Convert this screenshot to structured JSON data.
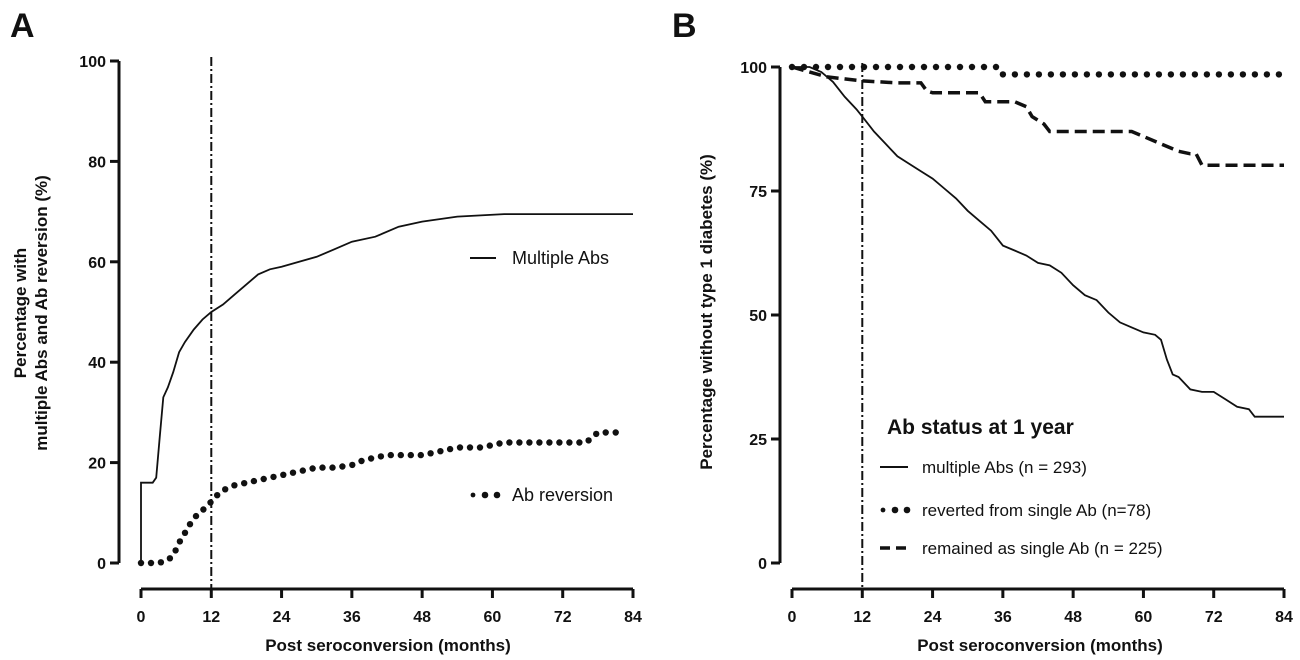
{
  "chart_data": [
    {
      "panel_label": "A",
      "type": "line",
      "xlabel": "Post seroconversion (months)",
      "ylabel_lines": [
        "Percentage with",
        "multiple Abs and Ab reversion (%)"
      ],
      "xlim": [
        0,
        84
      ],
      "ylim": [
        0,
        100
      ],
      "x_ticks": [
        0,
        12,
        24,
        36,
        48,
        60,
        72,
        84
      ],
      "y_ticks": [
        0,
        20,
        40,
        60,
        80,
        100
      ],
      "reference_line_x": 12,
      "series": [
        {
          "name": "Multiple Abs",
          "style": "solid",
          "points": [
            [
              0,
              0
            ],
            [
              0,
              16
            ],
            [
              2,
              16
            ],
            [
              2.6,
              17
            ],
            [
              3.2,
              25
            ],
            [
              3.8,
              33
            ],
            [
              4.6,
              35
            ],
            [
              5.5,
              38
            ],
            [
              6.5,
              42
            ],
            [
              7.5,
              44
            ],
            [
              9,
              46.5
            ],
            [
              10.5,
              48.5
            ],
            [
              12,
              50
            ],
            [
              14,
              51.5
            ],
            [
              16,
              53.5
            ],
            [
              18,
              55.5
            ],
            [
              20,
              57.5
            ],
            [
              22,
              58.5
            ],
            [
              24,
              59
            ],
            [
              27,
              60
            ],
            [
              30,
              61
            ],
            [
              33,
              62.5
            ],
            [
              36,
              64
            ],
            [
              40,
              65
            ],
            [
              44,
              67
            ],
            [
              48,
              68
            ],
            [
              54,
              69
            ],
            [
              62,
              69.5
            ],
            [
              84,
              69.5
            ]
          ]
        },
        {
          "name": "Ab reversion",
          "style": "dotted",
          "points": [
            [
              0,
              0
            ],
            [
              1.5,
              0
            ],
            [
              3,
              0
            ],
            [
              4.5,
              0.5
            ],
            [
              5.5,
              1.5
            ],
            [
              6.5,
              4
            ],
            [
              7.5,
              6
            ],
            [
              8.5,
              8
            ],
            [
              9.5,
              9.5
            ],
            [
              10.5,
              10.5
            ],
            [
              11.5,
              11.5
            ],
            [
              12.5,
              13
            ],
            [
              14,
              14.5
            ],
            [
              16,
              15.5
            ],
            [
              18,
              16
            ],
            [
              20,
              16.5
            ],
            [
              22,
              17
            ],
            [
              24,
              17.5
            ],
            [
              26,
              18
            ],
            [
              28,
              18.5
            ],
            [
              30,
              19
            ],
            [
              33,
              19
            ],
            [
              36,
              19.5
            ],
            [
              38,
              20.5
            ],
            [
              40,
              21
            ],
            [
              42,
              21.5
            ],
            [
              44,
              21.5
            ],
            [
              46,
              21.5
            ],
            [
              48,
              21.5
            ],
            [
              50,
              22
            ],
            [
              52,
              22.5
            ],
            [
              54,
              23
            ],
            [
              56,
              23
            ],
            [
              58,
              23
            ],
            [
              60,
              23.5
            ],
            [
              62,
              24
            ],
            [
              64,
              24
            ],
            [
              66,
              24
            ],
            [
              68,
              24
            ],
            [
              70,
              24
            ],
            [
              72,
              24
            ],
            [
              74,
              24
            ],
            [
              76,
              24
            ],
            [
              78,
              26
            ],
            [
              80,
              26
            ],
            [
              82,
              26
            ]
          ]
        }
      ]
    },
    {
      "panel_label": "B",
      "type": "line",
      "xlabel": "Post seroconversion (months)",
      "ylabel_lines": [
        "Percentage without type 1 diabetes (%)"
      ],
      "xlim": [
        0,
        84
      ],
      "ylim": [
        0,
        100
      ],
      "x_ticks": [
        0,
        12,
        24,
        36,
        48,
        60,
        72,
        84
      ],
      "y_ticks": [
        0,
        25,
        50,
        75,
        100
      ],
      "reference_line_x": 12,
      "legend_title": "Ab status at 1 year",
      "series": [
        {
          "name": "multiple Abs (n = 293)",
          "style": "solid",
          "points": [
            [
              0,
              100
            ],
            [
              3,
              100
            ],
            [
              5,
              99
            ],
            [
              7,
              97
            ],
            [
              9,
              94
            ],
            [
              11,
              91.5
            ],
            [
              12,
              90
            ],
            [
              14,
              87
            ],
            [
              16,
              84.5
            ],
            [
              18,
              82
            ],
            [
              20,
              80.5
            ],
            [
              22,
              79
            ],
            [
              24,
              77.5
            ],
            [
              26,
              75.5
            ],
            [
              28,
              73.5
            ],
            [
              30,
              71
            ],
            [
              32,
              69
            ],
            [
              34,
              67
            ],
            [
              36,
              64
            ],
            [
              38,
              63
            ],
            [
              40,
              62
            ],
            [
              42,
              60.5
            ],
            [
              44,
              60
            ],
            [
              46,
              58.5
            ],
            [
              48,
              56
            ],
            [
              50,
              54
            ],
            [
              52,
              53
            ],
            [
              54,
              50.5
            ],
            [
              56,
              48.5
            ],
            [
              58,
              47.5
            ],
            [
              60,
              46.5
            ],
            [
              62,
              46
            ],
            [
              63,
              45
            ],
            [
              64,
              41
            ],
            [
              65,
              38
            ],
            [
              66,
              37.5
            ],
            [
              68,
              35
            ],
            [
              70,
              34.5
            ],
            [
              72,
              34.5
            ],
            [
              74,
              33
            ],
            [
              76,
              31.5
            ],
            [
              78,
              31
            ],
            [
              79,
              29.5
            ],
            [
              84,
              29.5
            ]
          ]
        },
        {
          "name": "reverted from single Ab (n=78)",
          "style": "dotted",
          "points": [
            [
              0,
              100
            ],
            [
              35,
              100
            ],
            [
              35.5,
              98.5
            ],
            [
              84,
              98.5
            ]
          ]
        },
        {
          "name": "remained as single Ab (n = 225)",
          "style": "dashed",
          "points": [
            [
              0,
              100
            ],
            [
              6,
              98
            ],
            [
              12,
              97.2
            ],
            [
              18,
              96.8
            ],
            [
              22,
              96.8
            ],
            [
              23,
              95.2
            ],
            [
              24,
              94.8
            ],
            [
              32,
              94.8
            ],
            [
              33,
              93
            ],
            [
              38,
              93
            ],
            [
              40,
              92
            ],
            [
              41,
              90
            ],
            [
              43,
              88.5
            ],
            [
              44,
              87
            ],
            [
              58,
              87
            ],
            [
              60,
              86
            ],
            [
              62,
              85
            ],
            [
              64,
              84
            ],
            [
              66,
              83
            ],
            [
              68,
              82.5
            ],
            [
              69,
              82.5
            ],
            [
              70,
              80.2
            ],
            [
              84,
              80.2
            ]
          ]
        }
      ]
    }
  ]
}
